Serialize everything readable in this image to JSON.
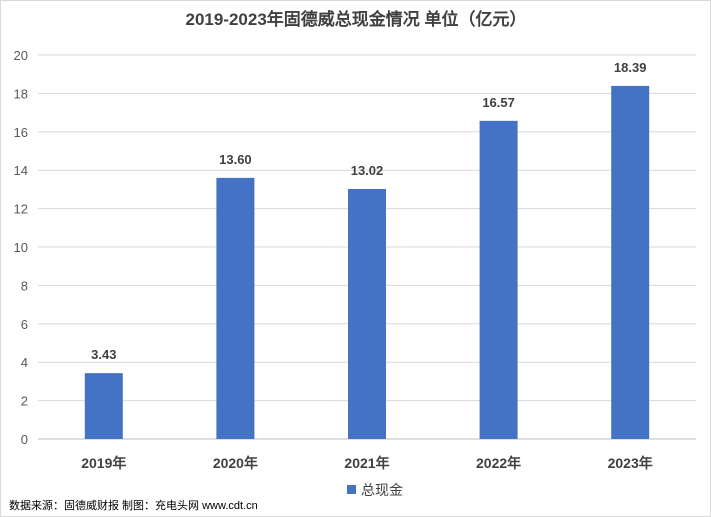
{
  "chart_data": {
    "type": "bar",
    "title": "2019-2023年固德威总现金情况 单位（亿元）",
    "categories": [
      "2019年",
      "2020年",
      "2021年",
      "2022年",
      "2023年"
    ],
    "series": [
      {
        "name": "总现金",
        "values": [
          3.43,
          13.6,
          13.02,
          16.57,
          18.39
        ],
        "color": "#4472c4"
      }
    ],
    "data_labels": [
      "3.43",
      "13.60",
      "13.02",
      "16.57",
      "18.39"
    ],
    "ylim": [
      0,
      20
    ],
    "yticks": [
      0,
      2,
      4,
      6,
      8,
      10,
      12,
      14,
      16,
      18,
      20
    ],
    "grid": true,
    "gridline_color": "#d9d9d9",
    "legend_position": "bottom"
  },
  "source_text": "数据来源：固德威财报  制图：充电头网 www.cdt.cn"
}
